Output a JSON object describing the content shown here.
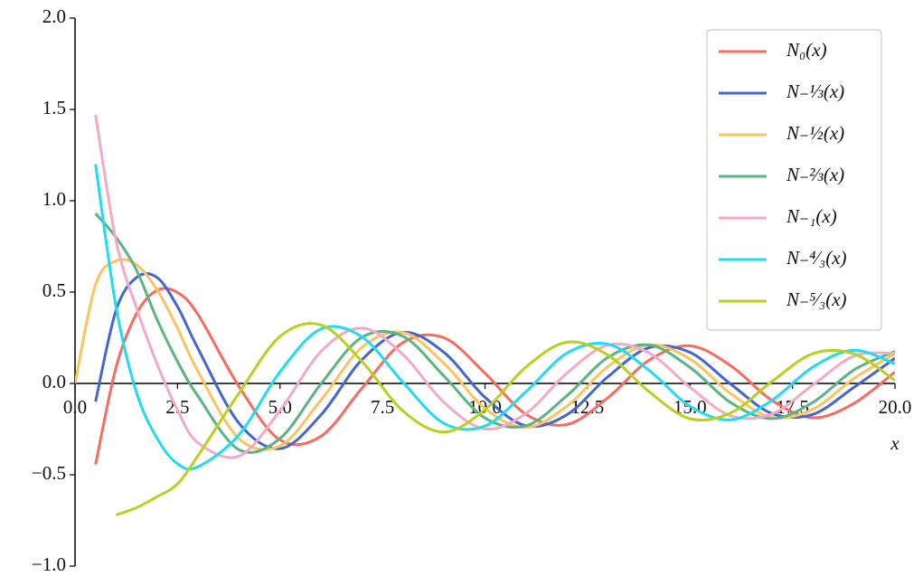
{
  "chart_data": {
    "type": "line",
    "x": [
      0,
      0.5,
      1,
      1.5,
      2,
      2.5,
      3,
      4,
      5,
      6,
      7,
      8,
      9,
      10,
      11,
      12,
      13,
      14,
      15,
      16,
      17,
      18,
      19,
      20
    ],
    "series": [
      {
        "name": "N₀(x)",
        "color": "#fc6a5e",
        "values": [
          null,
          -0.444,
          0.088,
          0.382,
          0.51,
          0.498,
          0.377,
          -0.017,
          -0.309,
          -0.289,
          -0.026,
          0.224,
          0.25,
          0.056,
          -0.169,
          -0.225,
          -0.078,
          0.127,
          0.206,
          0.096,
          -0.093,
          -0.188,
          -0.109,
          0.063
        ]
      },
      {
        "name": "N₋⅓(x)",
        "color": "#4466d4",
        "values": [
          null,
          -0.1,
          0.4,
          0.58,
          0.58,
          0.42,
          0.191,
          -0.218,
          -0.357,
          -0.172,
          0.13,
          0.28,
          0.17,
          -0.076,
          -0.232,
          -0.171,
          0.037,
          0.196,
          0.17,
          -0.005,
          -0.165,
          -0.169,
          -0.021,
          0.138
        ]
      },
      {
        "name": "N₋½(x)",
        "color": "#fdc35c",
        "values": [
          0,
          0.541,
          0.671,
          0.65,
          0.513,
          0.302,
          0.065,
          -0.302,
          -0.342,
          -0.091,
          0.198,
          0.279,
          0.11,
          -0.137,
          -0.241,
          -0.124,
          0.093,
          0.211,
          0.134,
          -0.057,
          -0.186,
          -0.141,
          0.027,
          0.163
        ]
      },
      {
        "name": "N₋⅔(x)",
        "color": "#5ab582",
        "values": [
          null,
          0.93,
          0.8,
          0.62,
          0.35,
          0.12,
          -0.07,
          -0.363,
          -0.301,
          -0.002,
          0.253,
          0.258,
          0.04,
          -0.189,
          -0.232,
          -0.067,
          0.143,
          0.211,
          0.088,
          -0.106,
          -0.193,
          -0.103,
          0.074,
          0.176
        ]
      },
      {
        "name": "N₋₁(x)",
        "color": "#f6a9c6",
        "values": [
          null,
          1.47,
          0.781,
          0.412,
          0.107,
          -0.146,
          -0.325,
          -0.398,
          -0.148,
          0.175,
          0.303,
          0.158,
          -0.104,
          -0.249,
          -0.164,
          0.057,
          0.21,
          0.167,
          -0.021,
          -0.178,
          -0.167,
          -0.008,
          0.15,
          0.166
        ]
      },
      {
        "name": "N₋⁴⁄₃(x)",
        "color": "#1fdcf4",
        "values": [
          null,
          1.2,
          0.42,
          -0.05,
          -0.3,
          -0.44,
          -0.456,
          -0.281,
          0.064,
          0.298,
          0.255,
          0.006,
          -0.219,
          -0.233,
          -0.045,
          0.166,
          0.215,
          0.072,
          -0.125,
          -0.199,
          -0.092,
          0.09,
          0.182,
          0.107
        ]
      },
      {
        "name": "N₋⁵⁄₃(x)",
        "color": "#b9d11d",
        "values": [
          null,
          null,
          -0.72,
          -0.68,
          -0.62,
          -0.55,
          -0.395,
          -0.053,
          0.257,
          0.32,
          0.12,
          -0.151,
          -0.266,
          -0.144,
          0.09,
          0.226,
          0.155,
          -0.045,
          -0.193,
          -0.161,
          0.011,
          0.163,
          0.162,
          0.017
        ]
      }
    ],
    "xlabel": "x",
    "xlim": [
      0,
      20
    ],
    "ylim": [
      -1,
      2
    ],
    "xticks": [
      {
        "value": 0,
        "label": "0.0"
      },
      {
        "value": 2.5,
        "label": "2.5"
      },
      {
        "value": 5,
        "label": "5.0"
      },
      {
        "value": 7.5,
        "label": "7.5"
      },
      {
        "value": 10,
        "label": "10.0"
      },
      {
        "value": 12.5,
        "label": "12.5"
      },
      {
        "value": 15,
        "label": "15.0"
      },
      {
        "value": 17.5,
        "label": "17.5"
      },
      {
        "value": 20,
        "label": "20.0"
      }
    ],
    "yticks": [
      {
        "value": -1,
        "label": "−1.0"
      },
      {
        "value": -0.5,
        "label": "−0.5"
      },
      {
        "value": 0,
        "label": "0.0"
      },
      {
        "value": 0.5,
        "label": "0.5"
      },
      {
        "value": 1,
        "label": "1.0"
      },
      {
        "value": 1.5,
        "label": "1.5"
      },
      {
        "value": 2,
        "label": "2.0"
      }
    ],
    "legend": "upper right"
  }
}
